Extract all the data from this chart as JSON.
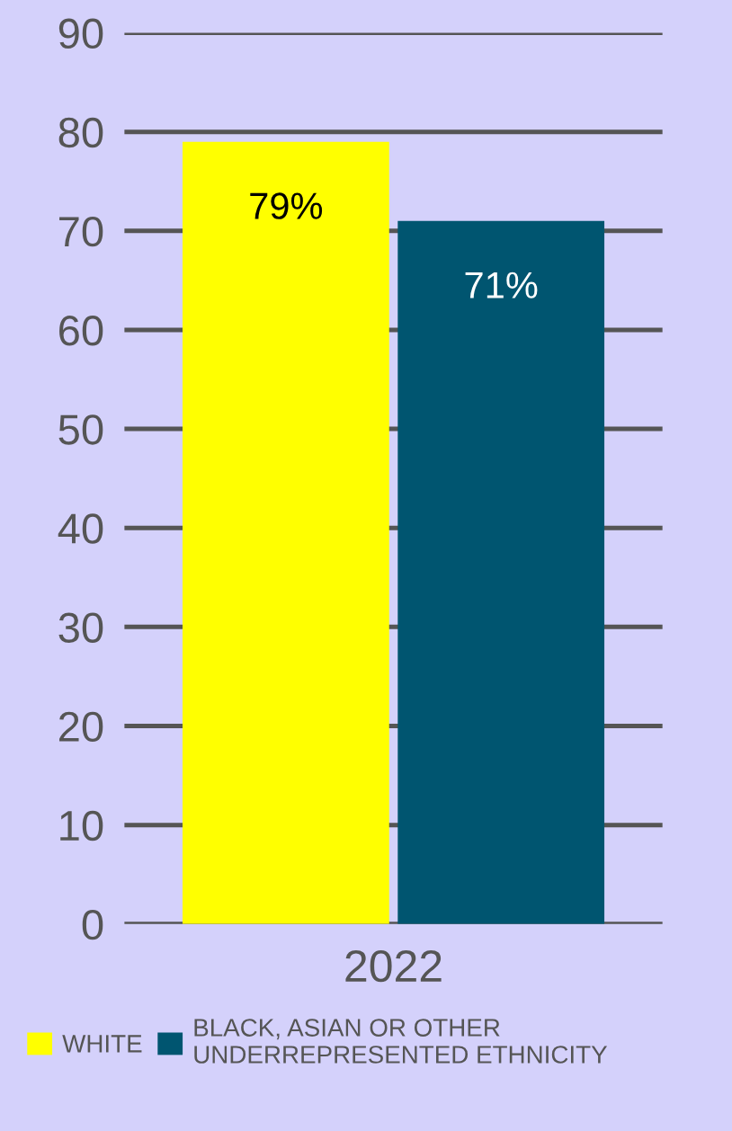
{
  "chart_data": {
    "type": "bar",
    "categories": [
      "2022"
    ],
    "series": [
      {
        "name": "WHITE",
        "color": "#ffff00",
        "values": [
          79
        ],
        "value_labels": [
          "79%"
        ]
      },
      {
        "name": "BLACK, ASIAN OR OTHER\nUNDERREPRESENTED ETHNICITY",
        "color": "#005570",
        "values": [
          71
        ],
        "value_labels": [
          "71%"
        ]
      }
    ],
    "ylim": [
      0,
      90
    ],
    "yticks": [
      0,
      10,
      20,
      30,
      40,
      50,
      60,
      70,
      80,
      90
    ],
    "grid": "y",
    "legend": "bottom"
  }
}
